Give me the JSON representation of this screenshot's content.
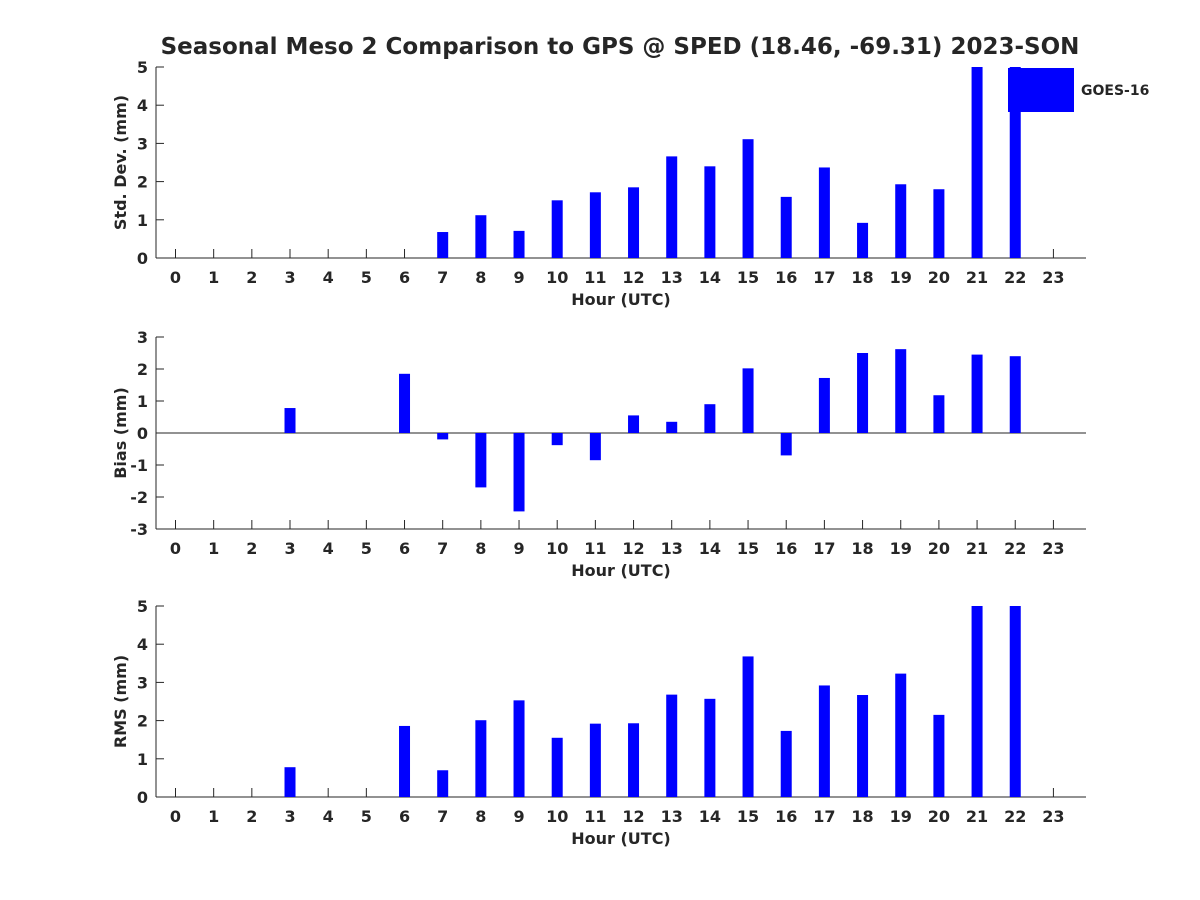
{
  "figure": {
    "title": "Seasonal Meso 2 Comparison to GPS @ SPED (18.46, -69.31) 2023-SON"
  },
  "legend": {
    "label": "GOES-16",
    "color": "#0000ff",
    "placement": "top-right"
  },
  "chart_data": [
    {
      "type": "bar",
      "xlabel": "Hour (UTC)",
      "ylabel": "Std. Dev. (mm)",
      "ylim": [
        0,
        5
      ],
      "yticks": [
        "0",
        "1",
        "2",
        "3",
        "4",
        "5"
      ],
      "categories": [
        "0",
        "1",
        "2",
        "3",
        "4",
        "5",
        "6",
        "7",
        "8",
        "9",
        "10",
        "11",
        "12",
        "13",
        "14",
        "15",
        "16",
        "17",
        "18",
        "19",
        "20",
        "21",
        "22",
        "23"
      ],
      "series": [
        {
          "name": "GOES-16",
          "color": "#0000ff",
          "values": [
            null,
            null,
            null,
            0,
            null,
            null,
            0,
            0.68,
            1.12,
            0.71,
            1.51,
            1.72,
            1.85,
            2.66,
            2.4,
            3.11,
            1.6,
            2.37,
            0.92,
            1.93,
            1.8,
            5,
            5,
            null
          ]
        }
      ]
    },
    {
      "type": "bar",
      "xlabel": "Hour (UTC)",
      "ylabel": "Bias (mm)",
      "ylim": [
        -3,
        3
      ],
      "yticks": [
        "-3",
        "-2",
        "-1",
        "0",
        "1",
        "2",
        "3"
      ],
      "categories": [
        "0",
        "1",
        "2",
        "3",
        "4",
        "5",
        "6",
        "7",
        "8",
        "9",
        "10",
        "11",
        "12",
        "13",
        "14",
        "15",
        "16",
        "17",
        "18",
        "19",
        "20",
        "21",
        "22",
        "23"
      ],
      "series": [
        {
          "name": "GOES-16",
          "color": "#0000ff",
          "values": [
            null,
            null,
            null,
            0.78,
            null,
            null,
            1.85,
            -0.2,
            -1.7,
            -2.45,
            -0.38,
            -0.85,
            0.55,
            0.35,
            0.9,
            2.02,
            -0.7,
            1.72,
            2.5,
            2.62,
            1.18,
            2.45,
            2.4,
            null
          ]
        }
      ]
    },
    {
      "type": "bar",
      "xlabel": "Hour (UTC)",
      "ylabel": "RMS (mm)",
      "ylim": [
        0,
        5
      ],
      "yticks": [
        "0",
        "1",
        "2",
        "3",
        "4",
        "5"
      ],
      "categories": [
        "0",
        "1",
        "2",
        "3",
        "4",
        "5",
        "6",
        "7",
        "8",
        "9",
        "10",
        "11",
        "12",
        "13",
        "14",
        "15",
        "16",
        "17",
        "18",
        "19",
        "20",
        "21",
        "22",
        "23"
      ],
      "series": [
        {
          "name": "GOES-16",
          "color": "#0000ff",
          "values": [
            null,
            null,
            null,
            0.78,
            null,
            null,
            1.86,
            0.7,
            2.01,
            2.53,
            1.55,
            1.92,
            1.93,
            2.68,
            2.57,
            3.68,
            1.73,
            2.92,
            2.67,
            3.23,
            2.15,
            5,
            5,
            null
          ]
        }
      ]
    }
  ]
}
